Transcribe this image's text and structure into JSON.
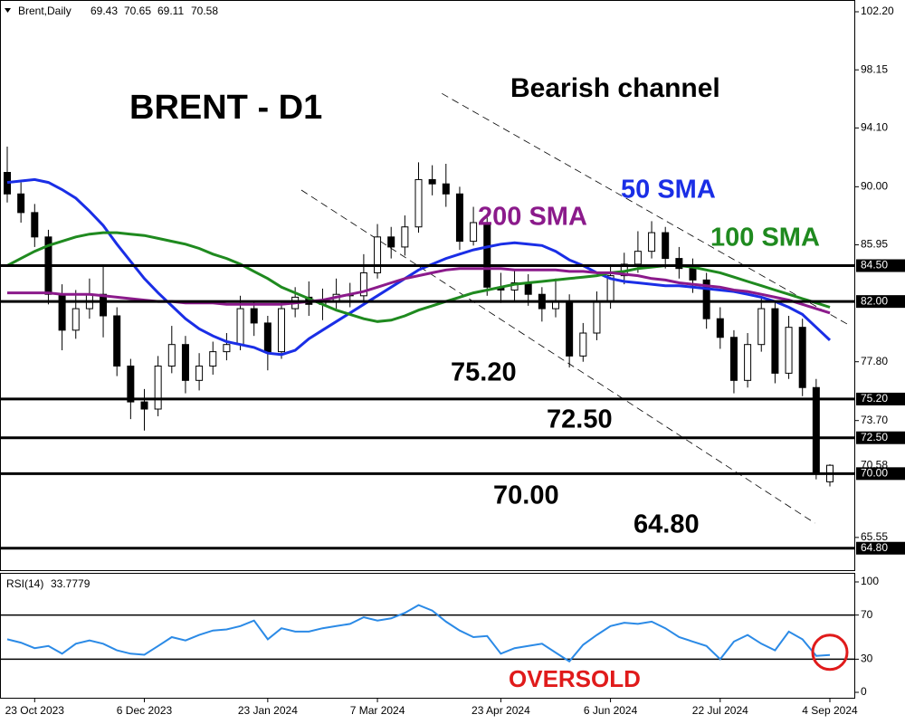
{
  "chart_data": {
    "type": "candlestick",
    "symbol": "Brent,Daily",
    "title": "BRENT - D1",
    "annotation": "Bearish channel",
    "categories": [
      null,
      null,
      "23 Oct 2023",
      null,
      null,
      null,
      null,
      null,
      null,
      null,
      "6 Dec 2023",
      null,
      null,
      null,
      null,
      null,
      null,
      null,
      null,
      "23 Jan 2024",
      null,
      null,
      null,
      null,
      null,
      null,
      null,
      "7 Mar 2024",
      null,
      null,
      null,
      null,
      null,
      null,
      null,
      null,
      "23 Apr 2024",
      null,
      null,
      null,
      null,
      null,
      null,
      null,
      "6 Jun 2024",
      null,
      null,
      null,
      null,
      null,
      null,
      null,
      "22 Jul 2024",
      null,
      null,
      null,
      null,
      null,
      null,
      null,
      "4 Sep 2024"
    ],
    "open": [
      91.0,
      89.5,
      88.2,
      86.5,
      82.5,
      80.0,
      81.5,
      82.5,
      81.0,
      77.5,
      75.0,
      74.5,
      77.5,
      79.0,
      76.5,
      77.5,
      78.5,
      79.0,
      81.5,
      80.5,
      78.5,
      81.5,
      82.3,
      81.8,
      82.0,
      82.5,
      82.4,
      84.0,
      86.5,
      85.8,
      87.2,
      90.5,
      90.2,
      89.5,
      86.2,
      87.5,
      83.0,
      82.8,
      83.3,
      82.5,
      81.5,
      82.0,
      78.2,
      79.8,
      82.0,
      83.8,
      84.6,
      85.5,
      86.8,
      85.0,
      84.3,
      83.5,
      80.8,
      79.5,
      76.5,
      79.0,
      81.5,
      77.0,
      80.2,
      76.0,
      69.43
    ],
    "high": [
      92.8,
      90.3,
      88.8,
      87.0,
      83.2,
      82.8,
      83.6,
      84.6,
      81.6,
      78.0,
      75.9,
      78.2,
      80.3,
      79.6,
      78.4,
      79.2,
      79.8,
      82.4,
      82.0,
      81.0,
      82.0,
      83.0,
      83.4,
      82.9,
      83.6,
      83.3,
      85.3,
      87.4,
      87.2,
      88.0,
      91.7,
      91.5,
      91.6,
      90.0,
      88.6,
      88.0,
      84.0,
      84.2,
      83.9,
      83.0,
      83.6,
      82.5,
      80.5,
      82.7,
      84.6,
      85.4,
      86.9,
      87.6,
      87.2,
      85.8,
      85.0,
      84.0,
      81.6,
      80.0,
      79.8,
      82.2,
      82.0,
      81.0,
      80.8,
      76.6,
      70.65
    ],
    "low": [
      88.9,
      87.5,
      85.8,
      81.8,
      78.6,
      79.4,
      80.8,
      79.5,
      76.8,
      73.8,
      73.0,
      74.0,
      77.0,
      75.6,
      75.8,
      76.9,
      77.9,
      78.6,
      79.6,
      77.2,
      78.0,
      80.9,
      81.0,
      80.7,
      81.5,
      81.6,
      82.0,
      83.6,
      85.0,
      85.2,
      86.8,
      89.4,
      88.6,
      85.6,
      85.9,
      82.4,
      81.9,
      82.0,
      81.7,
      80.6,
      80.9,
      77.4,
      77.8,
      79.3,
      81.5,
      83.2,
      84.0,
      85.0,
      84.3,
      83.6,
      82.6,
      80.1,
      78.7,
      75.6,
      76.0,
      78.5,
      76.3,
      76.6,
      75.4,
      69.6,
      69.11
    ],
    "close": [
      89.5,
      88.2,
      86.5,
      82.5,
      80.0,
      81.5,
      82.5,
      81.0,
      77.5,
      75.0,
      74.5,
      77.5,
      79.0,
      76.5,
      77.5,
      78.5,
      79.0,
      81.5,
      80.5,
      78.5,
      81.5,
      82.3,
      81.8,
      82.0,
      82.5,
      82.4,
      84.0,
      86.5,
      85.8,
      87.2,
      90.5,
      90.2,
      89.5,
      86.2,
      87.5,
      83.0,
      82.8,
      83.3,
      82.5,
      81.5,
      82.0,
      78.2,
      79.8,
      82.0,
      83.8,
      84.6,
      85.5,
      86.8,
      85.0,
      84.3,
      83.5,
      80.8,
      79.5,
      76.5,
      79.0,
      81.5,
      77.0,
      80.2,
      76.0,
      70.0,
      70.58
    ],
    "series": [
      {
        "name": "50 SMA",
        "color": "#1a2ee6",
        "values": [
          90.3,
          90.4,
          90.5,
          90.3,
          89.8,
          89.2,
          88.3,
          87.3,
          86.0,
          84.8,
          83.6,
          82.6,
          81.7,
          80.8,
          80.1,
          79.6,
          79.2,
          79.0,
          78.8,
          78.4,
          78.3,
          78.6,
          79.4,
          80.0,
          80.6,
          81.2,
          81.8,
          82.4,
          83.0,
          83.6,
          84.2,
          84.6,
          85.0,
          85.3,
          85.6,
          85.8,
          86.0,
          86.1,
          86.0,
          85.9,
          85.5,
          84.9,
          84.5,
          84.0,
          83.6,
          83.4,
          83.3,
          83.2,
          83.1,
          83.1,
          83.0,
          82.9,
          82.8,
          82.7,
          82.5,
          82.3,
          82.0,
          81.6,
          81.1,
          80.2,
          79.3
        ]
      },
      {
        "name": "100 SMA",
        "color": "#1f8a1f",
        "values": [
          84.5,
          85.0,
          85.5,
          85.9,
          86.2,
          86.5,
          86.7,
          86.8,
          86.8,
          86.7,
          86.6,
          86.4,
          86.2,
          86.0,
          85.7,
          85.3,
          85.0,
          84.6,
          84.1,
          83.6,
          83.0,
          82.6,
          82.2,
          81.8,
          81.4,
          81.1,
          80.8,
          80.6,
          80.7,
          81.0,
          81.4,
          81.7,
          82.0,
          82.3,
          82.6,
          82.8,
          83.0,
          83.2,
          83.3,
          83.4,
          83.5,
          83.6,
          83.7,
          83.8,
          84.0,
          84.1,
          84.3,
          84.4,
          84.5,
          84.5,
          84.4,
          84.2,
          84.0,
          83.7,
          83.4,
          83.1,
          82.8,
          82.5,
          82.2,
          81.9,
          81.6
        ]
      },
      {
        "name": "200 SMA",
        "color": "#8b1a8b",
        "values": [
          82.6,
          82.6,
          82.6,
          82.6,
          82.5,
          82.5,
          82.5,
          82.4,
          82.3,
          82.2,
          82.1,
          82.0,
          82.0,
          81.9,
          81.9,
          81.9,
          81.8,
          81.8,
          81.8,
          81.8,
          81.8,
          81.9,
          82.0,
          82.1,
          82.3,
          82.5,
          82.7,
          83.0,
          83.3,
          83.6,
          83.8,
          84.0,
          84.2,
          84.3,
          84.3,
          84.3,
          84.3,
          84.2,
          84.2,
          84.2,
          84.2,
          84.1,
          84.1,
          84.0,
          84.0,
          83.9,
          83.8,
          83.6,
          83.5,
          83.3,
          83.2,
          83.1,
          83.0,
          82.8,
          82.7,
          82.5,
          82.3,
          82.1,
          81.8,
          81.5,
          81.2
        ]
      }
    ],
    "ylim": [
      63.27,
      103.02
    ],
    "yticks": [
      {
        "value": 102.2,
        "label": "102.20"
      },
      98.15,
      {
        "value": 94.1,
        "label": "94.10"
      },
      {
        "value": 90,
        "label": "90.00"
      },
      85.95,
      {
        "value": 77.8,
        "label": "77.80"
      },
      {
        "value": 73.7,
        "label": "73.70"
      },
      65.55
    ],
    "levels": [
      {
        "value": 84.5,
        "label": "84.50"
      },
      {
        "value": 82,
        "label": "82.00"
      },
      {
        "value": 75.2,
        "label": "75.20"
      },
      {
        "value": 72.5,
        "label": "72.50"
      },
      {
        "value": 70,
        "label": "70.00"
      },
      {
        "value": 64.8,
        "label": "64.80"
      }
    ],
    "channel": [
      {
        "x": [
          31.7,
          61.5
        ],
        "y": [
          96.5,
          80.3
        ]
      },
      {
        "x": [
          21.45,
          58.9
        ],
        "y": [
          89.77,
          66.55
        ]
      }
    ],
    "indicator": {
      "name": "RSI(14)",
      "color": "#2b8ae6",
      "values": [
        48,
        45,
        40,
        42,
        35,
        44,
        47,
        44,
        38,
        35,
        34,
        42,
        50,
        47,
        52,
        56,
        57,
        60,
        65,
        48,
        58,
        55,
        55,
        58,
        60,
        62,
        68,
        65,
        67,
        72,
        79,
        74,
        64,
        56,
        50,
        51,
        35,
        40,
        42,
        44,
        36,
        28,
        43,
        52,
        60,
        63,
        62,
        64,
        58,
        50,
        46,
        42,
        30,
        46,
        52,
        44,
        38,
        55,
        48,
        33,
        33.7779
      ],
      "ylim": [
        0,
        100
      ],
      "yticks": [
        100,
        70,
        30,
        0
      ],
      "levels": [
        70,
        30
      ],
      "annotation": "OVERSOLD"
    }
  }
}
